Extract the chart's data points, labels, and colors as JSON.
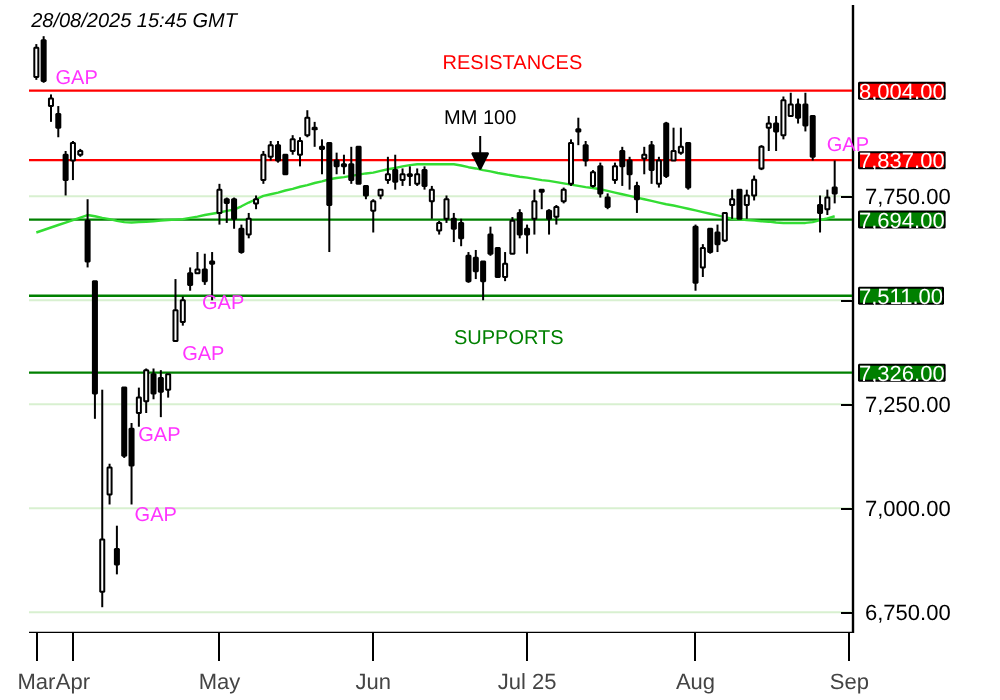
{
  "chart_data": {
    "type": "candlestick",
    "categories": [
      "Mar",
      null,
      null,
      null,
      null,
      "Apr",
      null,
      null,
      null,
      null,
      null,
      null,
      null,
      null,
      null,
      null,
      null,
      null,
      null,
      null,
      null,
      null,
      null,
      null,
      null,
      "May",
      null,
      null,
      null,
      null,
      null,
      null,
      null,
      null,
      null,
      null,
      null,
      null,
      null,
      null,
      null,
      null,
      null,
      null,
      null,
      null,
      "Jun",
      null,
      null,
      null,
      null,
      null,
      null,
      null,
      null,
      null,
      null,
      null,
      null,
      null,
      null,
      null,
      null,
      null,
      null,
      null,
      null,
      "Jul 25",
      null,
      null,
      null,
      null,
      null,
      null,
      null,
      null,
      null,
      null,
      null,
      null,
      null,
      null,
      null,
      null,
      null,
      null,
      null,
      null,
      null,
      null,
      "Aug",
      null,
      null,
      null,
      null,
      null,
      null,
      null,
      null,
      null,
      null,
      null,
      null,
      null,
      null,
      null,
      null,
      null,
      null,
      null,
      null,
      "Sep"
    ],
    "ohlc": [
      [
        8037,
        8116,
        8030,
        8107
      ],
      [
        8125,
        8135,
        8023,
        8027
      ],
      [
        7967,
        7995,
        7929,
        7985
      ],
      [
        7948,
        7967,
        7892,
        7915
      ],
      [
        7850,
        7859,
        7752,
        7789
      ],
      [
        7836,
        7883,
        7789,
        7878
      ],
      [
        7850,
        7864,
        7845,
        7859
      ],
      [
        7691,
        7743,
        7579,
        7593
      ],
      [
        7546,
        7546,
        7215,
        7276
      ],
      [
        6799,
        7285,
        6762,
        6925
      ],
      [
        7033,
        7107,
        7009,
        7098
      ],
      [
        6902,
        6958,
        6841,
        6865
      ],
      [
        7290,
        7290,
        7121,
        7126
      ],
      [
        7191,
        7205,
        7009,
        7103
      ],
      [
        7229,
        7290,
        7196,
        7266
      ],
      [
        7257,
        7336,
        7229,
        7332
      ],
      [
        7322,
        7336,
        7262,
        7276
      ],
      [
        7313,
        7332,
        7219,
        7280
      ],
      [
        7285,
        7322,
        7266,
        7322
      ],
      [
        7402,
        7551,
        7402,
        7476
      ],
      [
        7448,
        7509,
        7439,
        7500
      ],
      [
        7565,
        7579,
        7523,
        7537
      ],
      [
        7565,
        7616,
        7565,
        7574
      ],
      [
        7574,
        7612,
        7537,
        7546
      ],
      [
        7593,
        7616,
        7500,
        7588
      ],
      [
        7710,
        7780,
        7682,
        7766
      ],
      [
        7743,
        7747,
        7686,
        7734
      ],
      [
        7743,
        7747,
        7672,
        7696
      ],
      [
        7672,
        7682,
        7612,
        7616
      ],
      [
        7658,
        7710,
        7649,
        7696
      ],
      [
        7733,
        7752,
        7719,
        7743
      ],
      [
        7789,
        7859,
        7780,
        7850
      ],
      [
        7845,
        7883,
        7836,
        7873
      ],
      [
        7873,
        7883,
        7831,
        7836
      ],
      [
        7850,
        7850,
        7803,
        7803
      ],
      [
        7859,
        7897,
        7850,
        7887
      ],
      [
        7850,
        7892,
        7822,
        7883
      ],
      [
        7897,
        7957,
        7892,
        7939
      ],
      [
        7915,
        7929,
        7869,
        7911
      ],
      [
        7869,
        7887,
        7803,
        7864
      ],
      [
        7878,
        7878,
        7616,
        7729
      ],
      [
        7836,
        7855,
        7803,
        7822
      ],
      [
        7827,
        7850,
        7803,
        7822
      ],
      [
        7827,
        7869,
        7780,
        7789
      ],
      [
        7869,
        7869,
        7780,
        7780
      ],
      [
        7775,
        7775,
        7743,
        7752
      ],
      [
        7715,
        7743,
        7663,
        7738
      ],
      [
        7752,
        7766,
        7743,
        7766
      ],
      [
        7789,
        7845,
        7780,
        7803
      ],
      [
        7813,
        7850,
        7766,
        7785
      ],
      [
        7789,
        7817,
        7775,
        7803
      ],
      [
        7803,
        7822,
        7775,
        7799
      ],
      [
        7780,
        7817,
        7775,
        7803
      ],
      [
        7813,
        7822,
        7766,
        7775
      ],
      [
        7738,
        7775,
        7696,
        7766
      ],
      [
        7668,
        7691,
        7658,
        7686
      ],
      [
        7696,
        7752,
        7686,
        7743
      ],
      [
        7696,
        7710,
        7640,
        7672
      ],
      [
        7686,
        7696,
        7630,
        7649
      ],
      [
        7607,
        7616,
        7542,
        7546
      ],
      [
        7602,
        7621,
        7551,
        7570
      ],
      [
        7593,
        7593,
        7500,
        7546
      ],
      [
        7658,
        7677,
        7607,
        7612
      ],
      [
        7626,
        7626,
        7556,
        7556
      ],
      [
        7556,
        7616,
        7546,
        7588
      ],
      [
        7612,
        7700,
        7612,
        7691
      ],
      [
        7710,
        7719,
        7649,
        7658
      ],
      [
        7672,
        7682,
        7612,
        7658
      ],
      [
        7696,
        7766,
        7658,
        7738
      ],
      [
        7766,
        7766,
        7719,
        7761
      ],
      [
        7715,
        7719,
        7658,
        7696
      ],
      [
        7701,
        7729,
        7682,
        7724
      ],
      [
        7738,
        7771,
        7733,
        7766
      ],
      [
        7780,
        7887,
        7775,
        7878
      ],
      [
        7911,
        7939,
        7873,
        7906
      ],
      [
        7873,
        7883,
        7822,
        7836
      ],
      [
        7775,
        7813,
        7771,
        7808
      ],
      [
        7822,
        7831,
        7747,
        7757
      ],
      [
        7747,
        7757,
        7719,
        7724
      ],
      [
        7789,
        7831,
        7780,
        7822
      ],
      [
        7859,
        7869,
        7775,
        7822
      ],
      [
        7836,
        7845,
        7766,
        7803
      ],
      [
        7775,
        7785,
        7710,
        7743
      ],
      [
        7841,
        7869,
        7803,
        7850
      ],
      [
        7873,
        7883,
        7780,
        7813
      ],
      [
        7780,
        7845,
        7771,
        7836
      ],
      [
        7925,
        7929,
        7794,
        7799
      ],
      [
        7836,
        7915,
        7836,
        7859
      ],
      [
        7855,
        7915,
        7850,
        7869
      ],
      [
        7878,
        7878,
        7766,
        7771
      ],
      [
        7677,
        7682,
        7523,
        7542
      ],
      [
        7579,
        7635,
        7556,
        7626
      ],
      [
        7672,
        7672,
        7612,
        7616
      ],
      [
        7663,
        7682,
        7616,
        7635
      ],
      [
        7644,
        7710,
        7640,
        7710
      ],
      [
        7729,
        7766,
        7696,
        7743
      ],
      [
        7766,
        7766,
        7696,
        7696
      ],
      [
        7729,
        7766,
        7696,
        7752
      ],
      [
        7752,
        7800,
        7740,
        7790
      ],
      [
        7817,
        7873,
        7813,
        7869
      ],
      [
        7915,
        7943,
        7859,
        7925
      ],
      [
        7925,
        7943,
        7859,
        7906
      ],
      [
        7897,
        7990,
        7887,
        7981
      ],
      [
        7943,
        7999,
        7943,
        7971
      ],
      [
        7971,
        7985,
        7925,
        7939
      ],
      [
        7971,
        7999,
        7906,
        7920
      ],
      [
        7943,
        7943,
        7836,
        7845
      ],
      [
        7729,
        7752,
        7663,
        7710
      ],
      [
        7719,
        7766,
        7705,
        7747
      ],
      [
        7771,
        7836,
        7733,
        7757
      ],
      null,
      null
    ],
    "series": [
      {
        "type": "line",
        "color": "#33dd33",
        "values": [
          7663,
          7669,
          7675,
          7681,
          7687,
          7693,
          7699,
          7705,
          7702,
          7698,
          7695,
          7691,
          7688,
          7687,
          7688,
          7689,
          7690,
          7692,
          7693,
          7694,
          7695,
          7698,
          7701,
          7705,
          7708,
          7711,
          7715,
          7718,
          7726,
          7735,
          7743,
          7751,
          7755,
          7759,
          7764,
          7768,
          7773,
          7777,
          7782,
          7786,
          7791,
          7794,
          7796,
          7799,
          7802,
          7805,
          7807,
          7811,
          7815,
          7818,
          7822,
          7825,
          7827,
          7827,
          7827,
          7827,
          7827,
          7827,
          7824,
          7820,
          7817,
          7813,
          7810,
          7806,
          7803,
          7800,
          7797,
          7795,
          7792,
          7789,
          7787,
          7784,
          7781,
          7778,
          7775,
          7772,
          7770,
          7767,
          7763,
          7759,
          7755,
          7751,
          7747,
          7743,
          7739,
          7735,
          7731,
          7728,
          7724,
          7720,
          7716,
          7712,
          7708,
          7704,
          7700,
          7696,
          7695,
          7693,
          7692,
          7690,
          7689,
          7687,
          7686,
          7686,
          7686,
          7686,
          7688,
          7693,
          7697,
          7702,
          null,
          null
        ]
      }
    ],
    "ylim": [
      6700,
      8210
    ],
    "yticks": [
      {
        "value": 6750,
        "label": "6,750.00"
      },
      {
        "value": 7000,
        "label": "7,000.00"
      },
      {
        "value": 7250,
        "label": "7,250.00"
      },
      {
        "value": 7500,
        "label": null
      },
      {
        "value": 7750,
        "label": "7,750.00"
      }
    ],
    "grid": "y",
    "ref_lines": [
      {
        "axis": "y",
        "value": 8004,
        "label": "8,004.00",
        "color": "#ff0000"
      },
      {
        "axis": "y",
        "value": 7837,
        "label": "7,837.00",
        "color": "#ff0000"
      },
      {
        "axis": "y",
        "value": 7694,
        "label": "7,694.00",
        "color": "#008000"
      },
      {
        "axis": "y",
        "value": 7511,
        "label": "7,511.00",
        "color": "#008000"
      },
      {
        "axis": "y",
        "value": 7326,
        "label": "7,326.00",
        "color": "#008000"
      }
    ],
    "annotations": [
      "28/08/2025 15:45 GMT",
      "RESISTANCES",
      "SUPPORTS",
      "MM 100",
      "GAP",
      "GAP",
      "GAP",
      "GAP",
      "GAP",
      "GAP"
    ]
  }
}
